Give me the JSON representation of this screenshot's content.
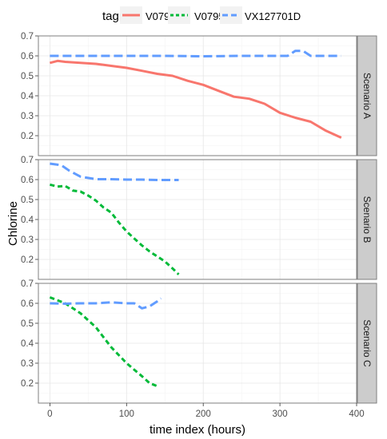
{
  "chart_data": {
    "type": "line",
    "facet_type": "vertical panels",
    "xlabel": "time index (hours)",
    "ylabel": "Chlorine",
    "xlim": [
      -15,
      400
    ],
    "xticks": [
      0,
      100,
      200,
      300,
      400
    ],
    "ylim": [
      0.1,
      0.7
    ],
    "yticks": [
      0.2,
      0.3,
      0.4,
      0.5,
      0.6,
      0.7
    ],
    "legend": {
      "title": "tag",
      "placement": "top",
      "items": [
        {
          "name": "V0794",
          "color": "#F8766D",
          "dash": "solid"
        },
        {
          "name": "V0795",
          "color": "#00BA38",
          "dash": "dashed"
        },
        {
          "name": "VX127701D",
          "color": "#619CFF",
          "dash": "longdash"
        }
      ]
    },
    "panels": [
      {
        "strip": "Scenario A",
        "series": [
          {
            "name": "V0794",
            "x": [
              0,
              10,
              20,
              40,
              60,
              80,
              100,
              120,
              140,
              160,
              180,
              200,
              220,
              240,
              260,
              280,
              300,
              320,
              340,
              360,
              380
            ],
            "y": [
              0.565,
              0.575,
              0.57,
              0.565,
              0.56,
              0.55,
              0.54,
              0.525,
              0.51,
              0.5,
              0.475,
              0.455,
              0.425,
              0.395,
              0.385,
              0.36,
              0.315,
              0.29,
              0.27,
              0.225,
              0.19
            ]
          },
          {
            "name": "VX127701D",
            "x": [
              0,
              50,
              100,
              150,
              200,
              250,
              300,
              310,
              320,
              330,
              340,
              360,
              380
            ],
            "y": [
              0.6,
              0.6,
              0.6,
              0.6,
              0.598,
              0.6,
              0.6,
              0.6,
              0.625,
              0.625,
              0.6,
              0.6,
              0.6
            ]
          }
        ]
      },
      {
        "strip": "Scenario B",
        "series": [
          {
            "name": "V0795",
            "x": [
              0,
              10,
              20,
              30,
              40,
              50,
              60,
              70,
              80,
              90,
              100,
              110,
              120,
              130,
              140,
              150,
              160,
              168
            ],
            "y": [
              0.575,
              0.565,
              0.568,
              0.545,
              0.54,
              0.52,
              0.495,
              0.46,
              0.435,
              0.385,
              0.34,
              0.305,
              0.27,
              0.24,
              0.215,
              0.19,
              0.155,
              0.125
            ]
          },
          {
            "name": "VX127701D",
            "x": [
              0,
              15,
              25,
              40,
              60,
              80,
              100,
              120,
              140,
              168
            ],
            "y": [
              0.68,
              0.672,
              0.645,
              0.615,
              0.602,
              0.602,
              0.6,
              0.6,
              0.598,
              0.598
            ]
          }
        ]
      },
      {
        "strip": "Scenario C",
        "series": [
          {
            "name": "V0795",
            "x": [
              0,
              20,
              40,
              60,
              80,
              100,
              120,
              130,
              140
            ],
            "y": [
              0.63,
              0.6,
              0.55,
              0.48,
              0.38,
              0.3,
              0.235,
              0.2,
              0.185
            ]
          },
          {
            "name": "VX127701D",
            "x": [
              0,
              20,
              40,
              60,
              80,
              100,
              110,
              120,
              130,
              140,
              145
            ],
            "y": [
              0.6,
              0.598,
              0.6,
              0.6,
              0.605,
              0.6,
              0.6,
              0.575,
              0.585,
              0.61,
              0.625
            ]
          }
        ]
      }
    ]
  }
}
